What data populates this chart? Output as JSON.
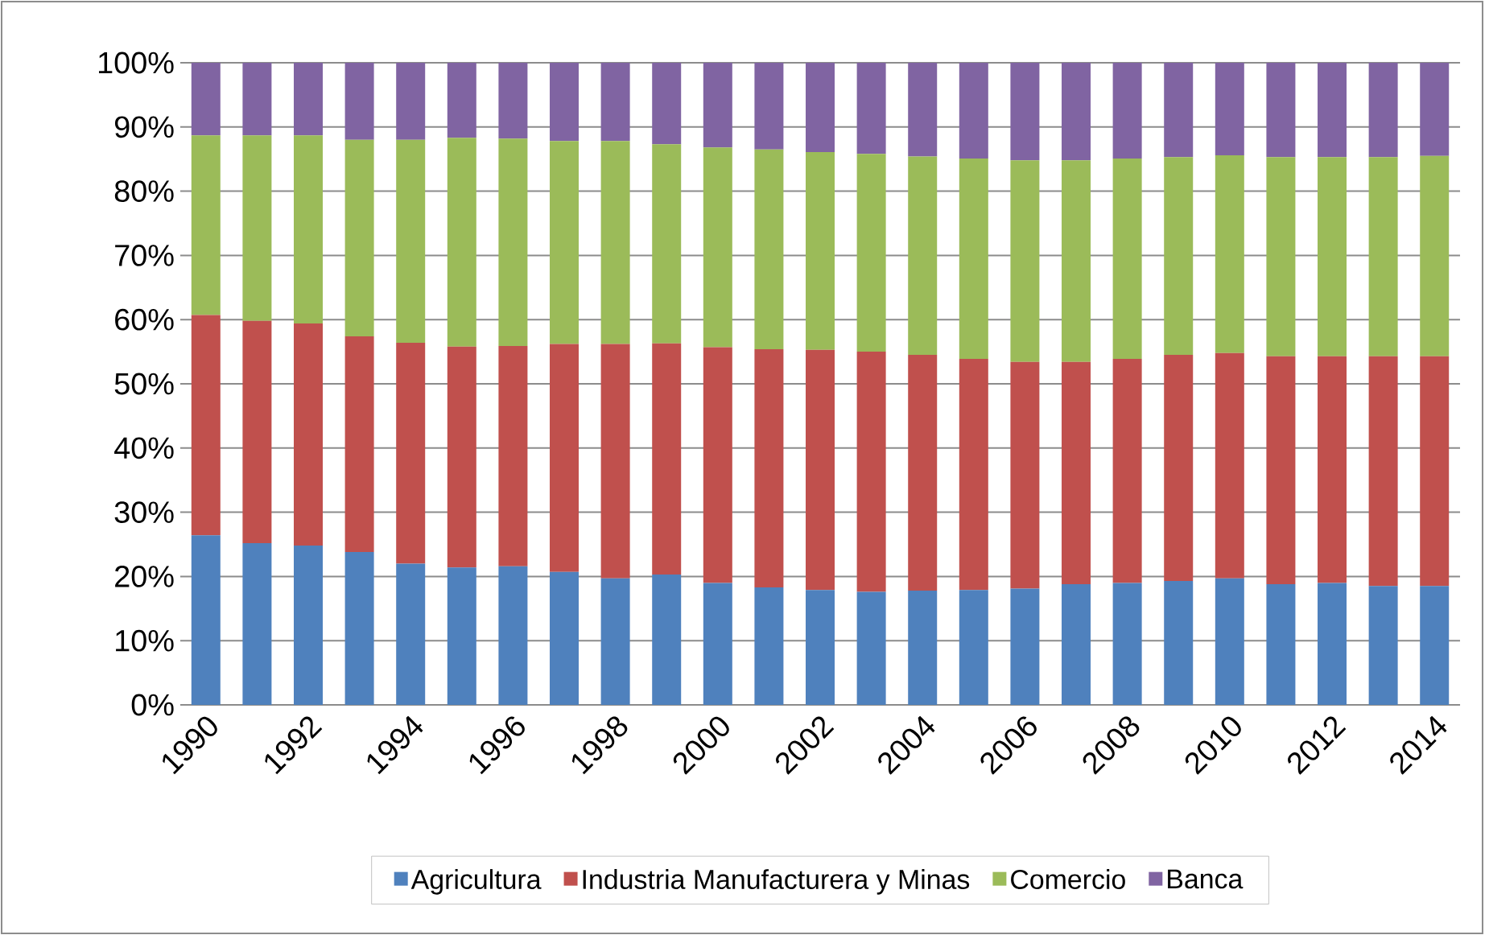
{
  "chart_data": {
    "type": "bar",
    "stacked": true,
    "grid": "y",
    "legend": "bottom",
    "categories": [
      "1990",
      null,
      "1992",
      null,
      "1994",
      null,
      "1996",
      null,
      "1998",
      null,
      "2000",
      null,
      "2002",
      null,
      "2004",
      null,
      "2006",
      null,
      "2008",
      null,
      "2010",
      null,
      "2012",
      null,
      "2014"
    ],
    "ylim": [
      0,
      100
    ],
    "yticks": [
      {
        "value": 0,
        "label": "0%"
      },
      {
        "value": 10,
        "label": "10%"
      },
      {
        "value": 20,
        "label": "20%"
      },
      {
        "value": 30,
        "label": "30%"
      },
      {
        "value": 40,
        "label": "40%"
      },
      {
        "value": 50,
        "label": "50%"
      },
      {
        "value": 60,
        "label": "60%"
      },
      {
        "value": 70,
        "label": "70%"
      },
      {
        "value": 80,
        "label": "80%"
      },
      {
        "value": 90,
        "label": "90%"
      },
      {
        "value": 100,
        "label": "100%"
      }
    ],
    "series": [
      {
        "name": "Agricultura",
        "color": "#4f81bd",
        "values": [
          26.4,
          25.2,
          24.8,
          23.8,
          22.0,
          21.4,
          21.6,
          20.7,
          19.7,
          20.3,
          19.0,
          18.3,
          17.9,
          17.6,
          17.8,
          17.9,
          18.1,
          18.8,
          19.0,
          19.3,
          19.7,
          18.8,
          19.0,
          18.5,
          18.5
        ]
      },
      {
        "name": "Industria Manufacturera y Minas",
        "color": "#c0504d",
        "values": [
          34.3,
          34.6,
          34.6,
          33.6,
          34.4,
          34.4,
          34.3,
          35.5,
          36.5,
          36.0,
          36.7,
          37.1,
          37.4,
          37.4,
          36.7,
          36.0,
          35.3,
          34.6,
          34.9,
          35.2,
          35.1,
          35.5,
          35.3,
          35.8,
          35.8
        ]
      },
      {
        "name": "Comercio",
        "color": "#9bbb59",
        "values": [
          28.0,
          28.9,
          29.3,
          30.6,
          31.6,
          32.5,
          32.3,
          31.6,
          31.6,
          31.0,
          31.1,
          31.1,
          30.8,
          30.8,
          30.9,
          31.2,
          31.4,
          31.4,
          31.2,
          30.8,
          30.8,
          31.0,
          31.0,
          31.0,
          31.2
        ]
      },
      {
        "name": "Banca",
        "color": "#8064a2",
        "values": [
          11.3,
          11.3,
          11.3,
          12.0,
          12.0,
          11.7,
          11.8,
          12.2,
          12.2,
          12.7,
          13.2,
          13.5,
          13.9,
          14.2,
          14.6,
          14.9,
          15.2,
          15.2,
          14.9,
          14.7,
          14.4,
          14.7,
          14.7,
          14.7,
          14.5
        ]
      }
    ]
  }
}
